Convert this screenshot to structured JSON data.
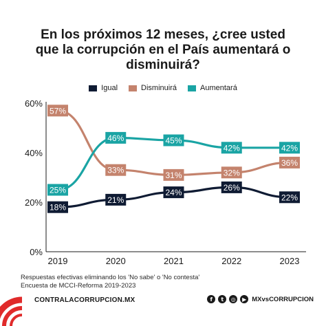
{
  "title_lines": [
    "En los próximos 12 meses, ¿cree usted",
    "que la corrupción en el País aumentará o",
    "disminuirá?"
  ],
  "colors": {
    "igual": "#0f1b33",
    "disminuira": "#c4836d",
    "aumentara": "#1aa4a4",
    "brand_red": "#e02b2b"
  },
  "chart_data": {
    "type": "line",
    "x": [
      "2019",
      "2020",
      "2021",
      "2022",
      "2023"
    ],
    "ylim": [
      0,
      60
    ],
    "yticks": [
      "0%",
      "20%",
      "40%",
      "60%"
    ],
    "yticks_values": [
      0,
      20,
      40,
      60
    ],
    "legend_position": "top-center",
    "grid": false,
    "series": [
      {
        "name": "Igual",
        "values": [
          18,
          21,
          24,
          26,
          22
        ],
        "labels": [
          "18%",
          "21%",
          "24%",
          "26%",
          "22%"
        ]
      },
      {
        "name": "Disminuirá",
        "values": [
          57,
          33,
          31,
          32,
          36
        ],
        "labels": [
          "57%",
          "33%",
          "31%",
          "32%",
          "36%"
        ]
      },
      {
        "name": "Aumentará",
        "values": [
          25,
          46,
          45,
          42,
          42
        ],
        "labels": [
          "25%",
          "46%",
          "45%",
          "42%",
          "42%"
        ]
      }
    ]
  },
  "footnote_lines": [
    "Respuestas efectivas eliminando los 'No sabe' o 'No contesta'",
    "Encuesta de MCCI-Reforma 2019-2023"
  ],
  "footer": {
    "website": "CONTRALACORRUPCION.MX",
    "handle": "MXvsCORRUPCION",
    "icons": [
      "facebook-icon",
      "twitter-icon",
      "instagram-icon",
      "youtube-icon"
    ]
  }
}
